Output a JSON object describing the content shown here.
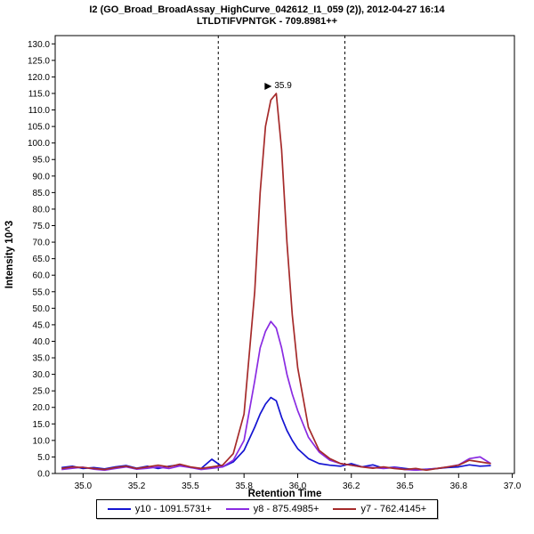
{
  "chart_data": {
    "type": "line",
    "title": "I2 (GO_Broad_BroadAssay_HighCurve_042612_I1_059 (2)), 2012-04-27 16:14",
    "subtitle": "LTLDTIFVPNTGK - 709.8981++",
    "xlabel": "Retention Time",
    "ylabel": "Intensity 10^3",
    "xlim": [
      34.87,
      37.01
    ],
    "ylim": [
      0,
      132.5
    ],
    "grid": false,
    "legend_position": "bottom",
    "xticks": {
      "values": [
        35.0,
        35.25,
        35.5,
        35.75,
        36.0,
        36.25,
        36.5,
        36.75,
        37.0
      ],
      "labels": [
        "35.0",
        "35.2",
        "35.5",
        "35.8",
        "36.0",
        "36.2",
        "36.5",
        "36.8",
        "37.0"
      ]
    },
    "yticks": {
      "values": [
        0,
        5,
        10,
        15,
        20,
        25,
        30,
        35,
        40,
        45,
        50,
        55,
        60,
        65,
        70,
        75,
        80,
        85,
        90,
        95,
        100,
        105,
        110,
        115,
        120,
        125,
        130
      ],
      "labels": [
        "0.0",
        "5.0",
        "10.0",
        "15.0",
        "20.0",
        "25.0",
        "30.0",
        "35.0",
        "40.0",
        "45.0",
        "50.0",
        "55.0",
        "60.0",
        "65.0",
        "70.0",
        "75.0",
        "80.0",
        "85.0",
        "90.0",
        "95.0",
        "100.0",
        "105.0",
        "110.0",
        "115.0",
        "120.0",
        "125.0",
        "130.0"
      ]
    },
    "x": [
      34.9,
      34.95,
      35.0,
      35.05,
      35.1,
      35.15,
      35.2,
      35.25,
      35.3,
      35.35,
      35.4,
      35.45,
      35.5,
      35.55,
      35.6,
      35.65,
      35.7,
      35.75,
      35.8,
      35.825,
      35.85,
      35.875,
      35.9,
      35.925,
      35.95,
      35.975,
      36.0,
      36.05,
      36.1,
      36.15,
      36.2,
      36.25,
      36.3,
      36.35,
      36.4,
      36.45,
      36.5,
      36.55,
      36.6,
      36.65,
      36.7,
      36.75,
      36.8,
      36.85,
      36.9
    ],
    "series": [
      {
        "name": "y10 - 1091.5731+",
        "color": "#1414d2",
        "values": [
          1.8,
          2.2,
          1.5,
          1.8,
          1.4,
          2.0,
          2.4,
          1.6,
          2.2,
          1.5,
          2.2,
          2.6,
          1.8,
          1.5,
          4.3,
          2.0,
          3.5,
          7.0,
          14.0,
          18.0,
          21.0,
          23.0,
          22.0,
          17.0,
          13.0,
          10.0,
          7.5,
          4.5,
          3.0,
          2.5,
          2.2,
          3.0,
          2.0,
          2.6,
          1.6,
          1.9,
          1.5,
          1.1,
          1.3,
          1.5,
          1.8,
          2.0,
          2.6,
          2.2,
          2.4
        ]
      },
      {
        "name": "y8 - 875.4985+",
        "color": "#8a2be2",
        "values": [
          1.2,
          1.6,
          1.9,
          1.3,
          1.0,
          1.5,
          2.0,
          1.3,
          1.6,
          2.0,
          1.5,
          2.3,
          1.8,
          1.2,
          1.6,
          2.0,
          4.0,
          10.0,
          28.0,
          38.0,
          43.0,
          46.0,
          44.0,
          38.0,
          30.0,
          24.0,
          19.0,
          11.0,
          6.5,
          4.0,
          3.0,
          2.5,
          2.0,
          1.8,
          1.5,
          1.8,
          1.2,
          1.0,
          1.2,
          1.5,
          2.0,
          2.6,
          4.5,
          5.0,
          3.0
        ]
      },
      {
        "name": "y7 - 762.4145+",
        "color": "#a52a2a",
        "values": [
          1.5,
          2.0,
          1.8,
          1.5,
          1.2,
          1.8,
          2.2,
          1.5,
          2.0,
          2.5,
          2.0,
          2.8,
          2.0,
          1.5,
          2.0,
          2.5,
          6.0,
          18.0,
          55.0,
          85.0,
          105.0,
          113.0,
          115.0,
          98.0,
          70.0,
          48.0,
          32.0,
          14.0,
          7.0,
          4.5,
          3.0,
          2.5,
          2.0,
          1.6,
          2.0,
          1.5,
          1.2,
          1.5,
          1.0,
          1.5,
          2.0,
          2.5,
          4.0,
          3.5,
          3.0
        ]
      }
    ],
    "peak_boundaries": [
      35.63,
      36.22
    ],
    "annotation": {
      "text": "35.9",
      "x": 35.9,
      "y": 115,
      "color": "#a52a2a",
      "pointer_color": "#000000"
    }
  }
}
